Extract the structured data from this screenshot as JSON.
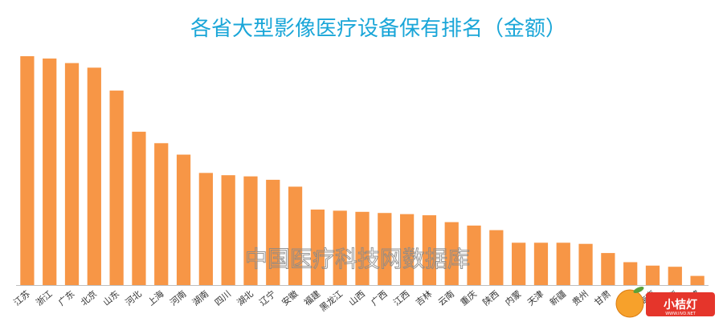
{
  "chart_data": {
    "type": "bar",
    "title": "各省大型影像医疗设备保有排名（金额）",
    "categories": [
      "江苏",
      "浙江",
      "广东",
      "北京",
      "山东",
      "河北",
      "上海",
      "河南",
      "湖南",
      "四川",
      "湖北",
      "辽宁",
      "安徽",
      "福建",
      "黑龙江",
      "山西",
      "广西",
      "江西",
      "吉林",
      "云南",
      "重庆",
      "陕西",
      "内蒙",
      "天津",
      "新疆",
      "贵州",
      "甘肃",
      "宁夏",
      "海南",
      "青海",
      "西藏"
    ],
    "values": [
      100,
      99,
      97,
      95,
      85,
      67,
      62,
      57,
      49,
      48,
      47.5,
      46,
      43,
      33,
      32.5,
      32,
      31.5,
      31,
      30.5,
      27.5,
      26,
      24,
      18.5,
      18.5,
      18.5,
      18,
      14,
      10,
      8.5,
      8,
      4
    ],
    "ylim": [
      0,
      100
    ],
    "bar_color": "#f79646",
    "axis_color": "#bfbfbf",
    "grid": false,
    "legend": "none"
  },
  "watermark": {
    "text": "中国医疗科技网数据库"
  },
  "logo": {
    "text": "小桔灯",
    "subtext": "WWW.IIVD.NET",
    "color": "#e5352b"
  }
}
